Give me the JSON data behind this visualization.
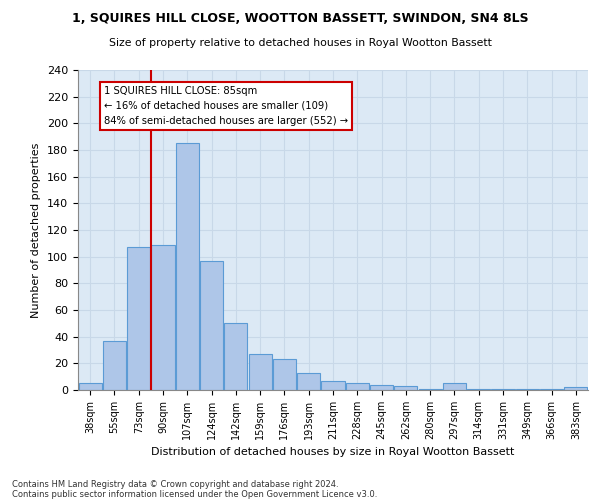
{
  "title": "1, SQUIRES HILL CLOSE, WOOTTON BASSETT, SWINDON, SN4 8LS",
  "subtitle": "Size of property relative to detached houses in Royal Wootton Bassett",
  "xlabel": "Distribution of detached houses by size in Royal Wootton Bassett",
  "ylabel": "Number of detached properties",
  "footer": "Contains HM Land Registry data © Crown copyright and database right 2024.\nContains public sector information licensed under the Open Government Licence v3.0.",
  "bar_labels": [
    "38sqm",
    "55sqm",
    "73sqm",
    "90sqm",
    "107sqm",
    "124sqm",
    "142sqm",
    "159sqm",
    "176sqm",
    "193sqm",
    "211sqm",
    "228sqm",
    "245sqm",
    "262sqm",
    "280sqm",
    "297sqm",
    "314sqm",
    "331sqm",
    "349sqm",
    "366sqm",
    "383sqm"
  ],
  "bar_values": [
    5,
    37,
    107,
    109,
    185,
    97,
    50,
    27,
    23,
    13,
    7,
    5,
    4,
    3,
    1,
    5,
    1,
    1,
    1,
    1,
    2
  ],
  "bar_color": "#aec6e8",
  "bar_edge_color": "#5b9bd5",
  "bar_edge_width": 0.8,
  "grid_color": "#c8d8e8",
  "bg_color": "#dce9f5",
  "vline_color": "#cc0000",
  "annotation_line1": "1 SQUIRES HILL CLOSE: 85sqm",
  "annotation_line2": "← 16% of detached houses are smaller (109)",
  "annotation_line3": "84% of semi-detached houses are larger (552) →",
  "annotation_box_color": "#cc0000",
  "ylim": [
    0,
    240
  ],
  "yticks": [
    0,
    20,
    40,
    60,
    80,
    100,
    120,
    140,
    160,
    180,
    200,
    220,
    240
  ]
}
